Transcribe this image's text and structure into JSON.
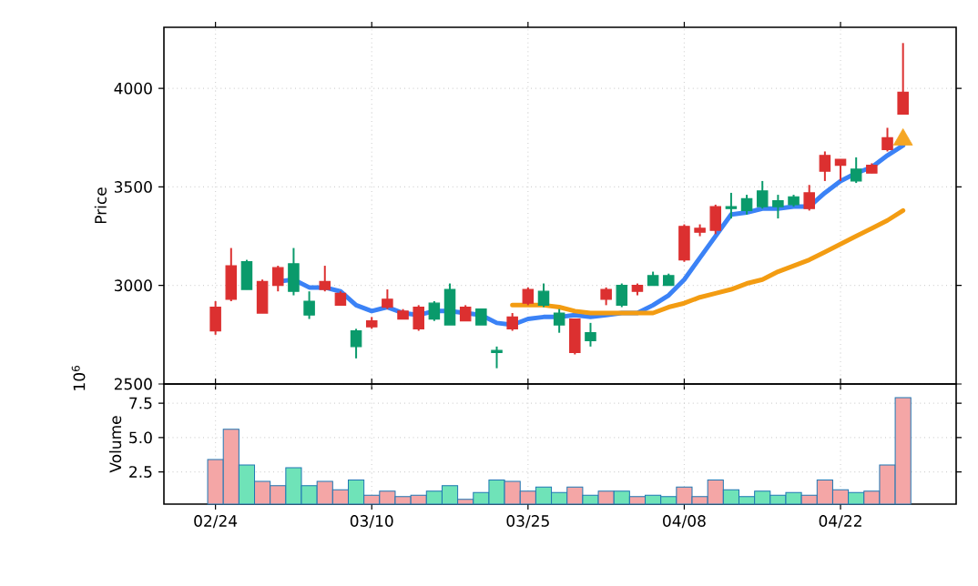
{
  "chart_data": [
    {
      "type": "candlestick",
      "ylabel": "Price",
      "categories": [
        null,
        null,
        null,
        null,
        null,
        null,
        null,
        null,
        null,
        null,
        null,
        null,
        null,
        null,
        null,
        null,
        null,
        null,
        null,
        null,
        null,
        null,
        null,
        null,
        null,
        null,
        null,
        null,
        null,
        null,
        null,
        null,
        null,
        null,
        null,
        null,
        null,
        null,
        null,
        null,
        null,
        null,
        null,
        null,
        null
      ],
      "ohlc": [
        [
          2770,
          2920,
          2750,
          2890
        ],
        [
          2930,
          3190,
          2920,
          3100
        ],
        [
          3120,
          3130,
          2980,
          2980
        ],
        [
          2860,
          3030,
          2860,
          3020
        ],
        [
          3000,
          3100,
          2970,
          3090
        ],
        [
          3110,
          3190,
          2950,
          2970
        ],
        [
          2920,
          2970,
          2830,
          2850
        ],
        [
          2980,
          3100,
          2970,
          3020
        ],
        [
          2900,
          2970,
          2900,
          2960
        ],
        [
          2770,
          2780,
          2630,
          2690
        ],
        [
          2790,
          2840,
          2780,
          2820
        ],
        [
          2890,
          2980,
          2880,
          2930
        ],
        [
          2830,
          2880,
          2830,
          2870
        ],
        [
          2780,
          2900,
          2770,
          2890
        ],
        [
          2910,
          2920,
          2820,
          2830
        ],
        [
          2980,
          3010,
          2800,
          2800
        ],
        [
          2820,
          2900,
          2820,
          2890
        ],
        [
          2880,
          2880,
          2800,
          2800
        ],
        [
          2670,
          2690,
          2580,
          2660
        ],
        [
          2780,
          2860,
          2770,
          2840
        ],
        [
          2910,
          2990,
          2900,
          2980
        ],
        [
          2970,
          3010,
          2890,
          2900
        ],
        [
          2860,
          2880,
          2760,
          2800
        ],
        [
          2660,
          2830,
          2650,
          2830
        ],
        [
          2760,
          2810,
          2690,
          2720
        ],
        [
          2930,
          2990,
          2900,
          2980
        ],
        [
          3000,
          3010,
          2890,
          2900
        ],
        [
          2970,
          3010,
          2950,
          3000
        ],
        [
          3050,
          3070,
          3000,
          3000
        ],
        [
          3050,
          3060,
          3000,
          3000
        ],
        [
          3130,
          3310,
          3120,
          3300
        ],
        [
          3270,
          3310,
          3250,
          3290
        ],
        [
          3280,
          3410,
          3260,
          3400
        ],
        [
          3400,
          3470,
          3340,
          3390
        ],
        [
          3440,
          3460,
          3360,
          3380
        ],
        [
          3480,
          3530,
          3390,
          3400
        ],
        [
          3430,
          3460,
          3340,
          3400
        ],
        [
          3450,
          3460,
          3400,
          3410
        ],
        [
          3390,
          3510,
          3380,
          3470
        ],
        [
          3580,
          3680,
          3530,
          3660
        ],
        [
          3610,
          3640,
          3530,
          3640
        ],
        [
          3590,
          3650,
          3520,
          3530
        ],
        [
          3570,
          3620,
          3570,
          3610
        ],
        [
          3690,
          3800,
          3680,
          3750
        ],
        [
          3870,
          4230,
          3870,
          3980
        ]
      ],
      "colors": [
        "#dc3030",
        "#dc3030",
        "#0a9a6b",
        "#dc3030",
        "#dc3030",
        "#0a9a6b",
        "#0a9a6b",
        "#dc3030",
        "#dc3030",
        "#0a9a6b",
        "#dc3030",
        "#dc3030",
        "#dc3030",
        "#dc3030",
        "#0a9a6b",
        "#0a9a6b",
        "#dc3030",
        "#0a9a6b",
        "#0a9a6b",
        "#dc3030",
        "#dc3030",
        "#0a9a6b",
        "#0a9a6b",
        "#dc3030",
        "#0a9a6b",
        "#dc3030",
        "#0a9a6b",
        "#dc3030",
        "#0a9a6b",
        "#0a9a6b",
        "#dc3030",
        "#dc3030",
        "#dc3030",
        "#0a9a6b",
        "#0a9a6b",
        "#0a9a6b",
        "#0a9a6b",
        "#0a9a6b",
        "#dc3030",
        "#dc3030",
        "#dc3030",
        "#0a9a6b",
        "#dc3030",
        "#dc3030",
        "#dc3030"
      ],
      "series": [
        {
          "type": "line",
          "color": "#3b82f6",
          "values": [
            null,
            null,
            null,
            null,
            3020,
            3030,
            2990,
            2990,
            2970,
            2900,
            2870,
            2890,
            2860,
            2850,
            2870,
            2870,
            2860,
            2850,
            2810,
            2800,
            2830,
            2840,
            2840,
            2850,
            2840,
            2850,
            2860,
            2860,
            2900,
            2950,
            3030,
            3140,
            3250,
            3360,
            3370,
            3390,
            3390,
            3400,
            3400,
            3470,
            3530,
            3570,
            3600,
            3660,
            3710
          ]
        },
        {
          "type": "line",
          "color": "#f39c12",
          "values": [
            null,
            null,
            null,
            null,
            null,
            null,
            null,
            null,
            null,
            null,
            null,
            null,
            null,
            null,
            null,
            null,
            null,
            null,
            null,
            2900,
            2900,
            2900,
            2890,
            2870,
            2860,
            2860,
            2860,
            2860,
            2860,
            2890,
            2910,
            2940,
            2960,
            2980,
            3010,
            3030,
            3070,
            3100,
            3130,
            3170,
            3210,
            3250,
            3290,
            3330,
            3380
          ]
        },
        {
          "type": "scatter",
          "color": "#f5a623",
          "marker": "triangle",
          "values": [
            null,
            null,
            null,
            null,
            null,
            null,
            null,
            null,
            null,
            null,
            null,
            null,
            null,
            null,
            null,
            null,
            null,
            null,
            null,
            null,
            null,
            null,
            null,
            null,
            null,
            null,
            null,
            null,
            null,
            null,
            null,
            null,
            null,
            null,
            null,
            null,
            null,
            null,
            null,
            null,
            null,
            null,
            null,
            null,
            3740
          ]
        }
      ],
      "ylim": [
        2500,
        4310
      ],
      "yticks": [
        2500,
        3000,
        3500,
        4000
      ],
      "grid": true,
      "tick_labels": "y"
    },
    {
      "type": "bar",
      "ylabel": "Volume",
      "annotations": [
        "10$^{6}$"
      ],
      "categories": [
        "02/24",
        null,
        null,
        null,
        null,
        null,
        null,
        null,
        null,
        null,
        "03/10",
        null,
        null,
        null,
        null,
        null,
        null,
        null,
        null,
        null,
        "03/25",
        null,
        null,
        null,
        null,
        null,
        null,
        null,
        null,
        null,
        "04/08",
        null,
        null,
        null,
        null,
        null,
        null,
        null,
        null,
        null,
        "04/22",
        null,
        null,
        null,
        null
      ],
      "values": [
        3.4,
        5.6,
        3.0,
        1.8,
        1.5,
        2.8,
        1.5,
        1.8,
        1.2,
        1.9,
        0.8,
        1.1,
        0.7,
        0.8,
        1.1,
        1.5,
        0.5,
        1.0,
        1.9,
        1.8,
        1.1,
        1.4,
        1.0,
        1.4,
        0.8,
        1.1,
        1.1,
        0.7,
        0.8,
        0.7,
        1.4,
        0.7,
        1.9,
        1.2,
        0.7,
        1.1,
        0.8,
        1.0,
        0.8,
        1.9,
        1.2,
        1.0,
        1.1,
        3.0,
        7.9
      ],
      "colors": [
        "#f4a6a6",
        "#f4a6a6",
        "#6fe3b8",
        "#f4a6a6",
        "#f4a6a6",
        "#6fe3b8",
        "#6fe3b8",
        "#f4a6a6",
        "#f4a6a6",
        "#6fe3b8",
        "#f4a6a6",
        "#f4a6a6",
        "#f4a6a6",
        "#f4a6a6",
        "#6fe3b8",
        "#6fe3b8",
        "#f4a6a6",
        "#6fe3b8",
        "#6fe3b8",
        "#f4a6a6",
        "#f4a6a6",
        "#6fe3b8",
        "#6fe3b8",
        "#f4a6a6",
        "#6fe3b8",
        "#f4a6a6",
        "#6fe3b8",
        "#f4a6a6",
        "#6fe3b8",
        "#6fe3b8",
        "#f4a6a6",
        "#f4a6a6",
        "#f4a6a6",
        "#6fe3b8",
        "#6fe3b8",
        "#6fe3b8",
        "#6fe3b8",
        "#6fe3b8",
        "#f4a6a6",
        "#f4a6a6",
        "#f4a6a6",
        "#6fe3b8",
        "#f4a6a6",
        "#f4a6a6",
        "#f4a6a6"
      ],
      "ylim": [
        0.15,
        8.9
      ],
      "yticks": [
        2.5,
        {
          "value": 5,
          "label": "5.0"
        },
        7.5
      ],
      "grid": true
    }
  ]
}
